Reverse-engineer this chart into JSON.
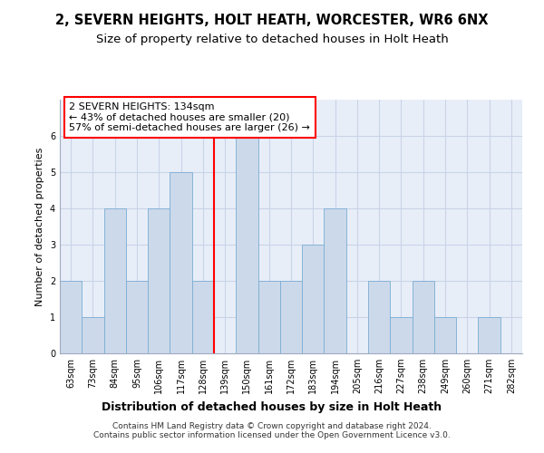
{
  "title1": "2, SEVERN HEIGHTS, HOLT HEATH, WORCESTER, WR6 6NX",
  "title2": "Size of property relative to detached houses in Holt Heath",
  "xlabel": "Distribution of detached houses by size in Holt Heath",
  "ylabel": "Number of detached properties",
  "bins": [
    "63sqm",
    "73sqm",
    "84sqm",
    "95sqm",
    "106sqm",
    "117sqm",
    "128sqm",
    "139sqm",
    "150sqm",
    "161sqm",
    "172sqm",
    "183sqm",
    "194sqm",
    "205sqm",
    "216sqm",
    "227sqm",
    "238sqm",
    "249sqm",
    "260sqm",
    "271sqm",
    "282sqm"
  ],
  "values": [
    2,
    1,
    4,
    2,
    4,
    5,
    2,
    0,
    6,
    2,
    2,
    3,
    4,
    0,
    2,
    1,
    2,
    1,
    0,
    1,
    0
  ],
  "bar_color": "#ccd9ea",
  "bar_edge_color": "#7aadd4",
  "grid_color": "#c8d4e8",
  "annotation_line1": "2 SEVERN HEIGHTS: 134sqm",
  "annotation_line2": "← 43% of detached houses are smaller (20)",
  "annotation_line3": "57% of semi-detached houses are larger (26) →",
  "property_line_bin_idx": 7,
  "ylim": [
    0,
    7
  ],
  "yticks": [
    0,
    1,
    2,
    3,
    4,
    5,
    6,
    7
  ],
  "footer_line1": "Contains HM Land Registry data © Crown copyright and database right 2024.",
  "footer_line2": "Contains public sector information licensed under the Open Government Licence v3.0.",
  "bg_color": "#e8eef8",
  "title1_fontsize": 10.5,
  "title2_fontsize": 9.5,
  "xlabel_fontsize": 9,
  "ylabel_fontsize": 8,
  "tick_fontsize": 7,
  "annotation_fontsize": 8,
  "footer_fontsize": 6.5
}
